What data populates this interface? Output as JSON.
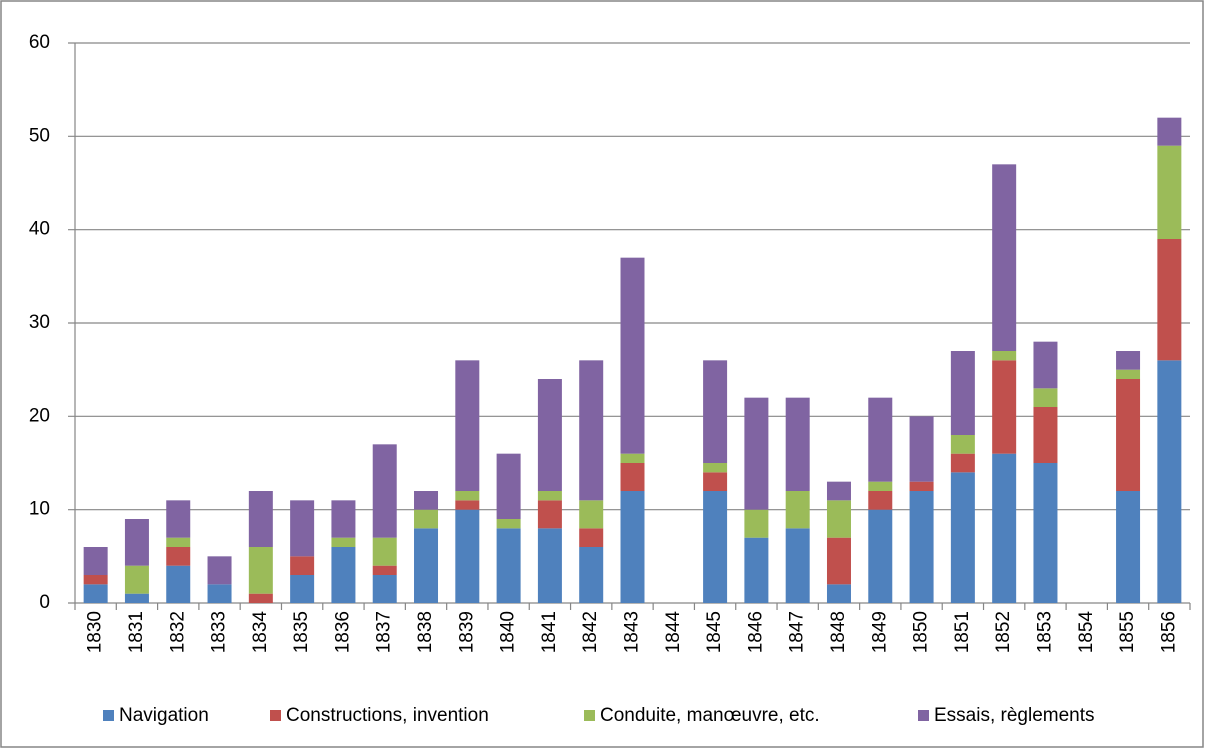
{
  "chart_data": {
    "type": "stacked_bar",
    "categories": [
      "1830",
      "1831",
      "1832",
      "1833",
      "1834",
      "1835",
      "1836",
      "1837",
      "1838",
      "1839",
      "1840",
      "1841",
      "1842",
      "1843",
      "1844",
      "1845",
      "1846",
      "1847",
      "1848",
      "1849",
      "1850",
      "1851",
      "1852",
      "1853",
      "1854",
      "1855",
      "1856"
    ],
    "series": [
      {
        "name": "Navigation",
        "color": "#4f81bd",
        "values": [
          2,
          1,
          4,
          2,
          0,
          3,
          6,
          3,
          8,
          10,
          8,
          8,
          6,
          12,
          0,
          12,
          7,
          8,
          2,
          10,
          12,
          14,
          16,
          15,
          0,
          12,
          26
        ]
      },
      {
        "name": "Constructions, invention",
        "color": "#c0504d",
        "values": [
          1,
          0,
          2,
          0,
          1,
          2,
          0,
          1,
          0,
          1,
          0,
          3,
          2,
          3,
          0,
          2,
          0,
          0,
          5,
          2,
          1,
          2,
          10,
          6,
          0,
          12,
          13
        ]
      },
      {
        "name": "Conduite, manœuvre, etc.",
        "color": "#9bbb59",
        "values": [
          0,
          3,
          1,
          0,
          5,
          0,
          1,
          3,
          2,
          1,
          1,
          1,
          3,
          1,
          0,
          1,
          3,
          4,
          4,
          1,
          0,
          2,
          1,
          2,
          0,
          1,
          10
        ]
      },
      {
        "name": "Essais, règlements",
        "color": "#8064a2",
        "values": [
          3,
          5,
          4,
          3,
          6,
          6,
          4,
          10,
          2,
          14,
          7,
          12,
          15,
          21,
          0,
          11,
          12,
          10,
          2,
          9,
          7,
          9,
          20,
          5,
          0,
          2,
          3
        ]
      }
    ],
    "ylim": [
      0,
      60
    ],
    "yticks": [
      0,
      10,
      20,
      30,
      40,
      50,
      60
    ],
    "grid": true,
    "legend": "bottom"
  }
}
